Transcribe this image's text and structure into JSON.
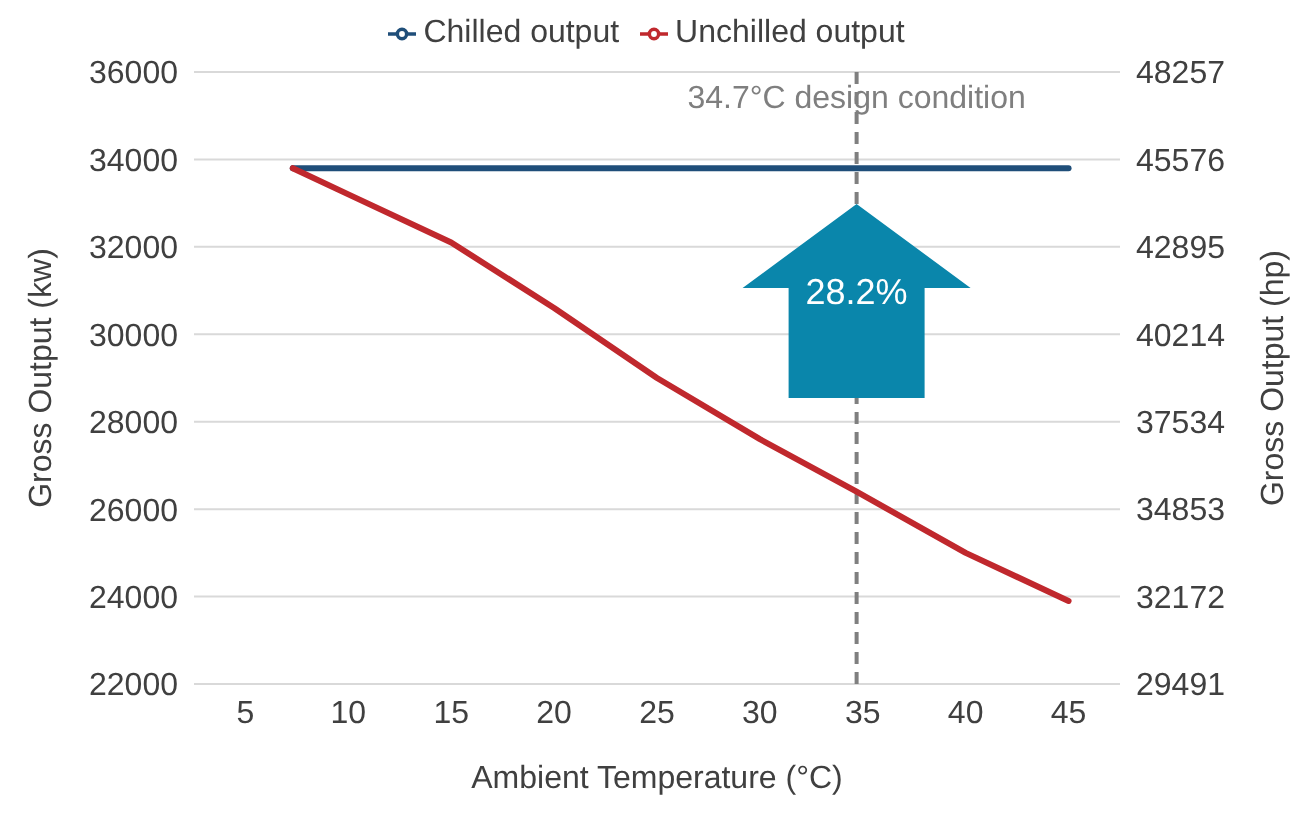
{
  "chart_data": {
    "type": "line",
    "xlabel": "Ambient Temperature (°C)",
    "ylabel": "Gross Output (kw)",
    "y2label": "Gross Output (hp)",
    "series": [
      {
        "name": "Chilled output",
        "color": "#1f4e79",
        "x": [
          7.3,
          45
        ],
        "values": [
          33800,
          33800
        ]
      },
      {
        "name": "Unchilled output",
        "color": "#c0282d",
        "x": [
          7.3,
          10,
          15,
          20,
          25,
          30,
          34.7,
          40,
          45
        ],
        "values": [
          33800,
          33200,
          32100,
          30600,
          29000,
          27600,
          26400,
          25000,
          23900
        ]
      }
    ],
    "xlim": [
      2.5,
      47.5
    ],
    "xticks": [
      5,
      10,
      15,
      20,
      25,
      30,
      35,
      40,
      45
    ],
    "ylim": [
      22000,
      36000
    ],
    "yticks": [
      22000,
      24000,
      26000,
      28000,
      30000,
      32000,
      34000,
      36000
    ],
    "y2lim": [
      29491,
      48257
    ],
    "y2ticks": [
      29491,
      32172,
      34853,
      37534,
      40214,
      42895,
      45576,
      48257
    ],
    "ref_lines": [
      {
        "axis": "x",
        "value": 34.7,
        "label": "34.7°C design condition",
        "color": "#7f7f7f",
        "line_style": "dashed"
      }
    ],
    "annotations": [
      "28.2%"
    ],
    "grid": "y",
    "legend": "top",
    "marker": "none",
    "line_style": "solid"
  }
}
